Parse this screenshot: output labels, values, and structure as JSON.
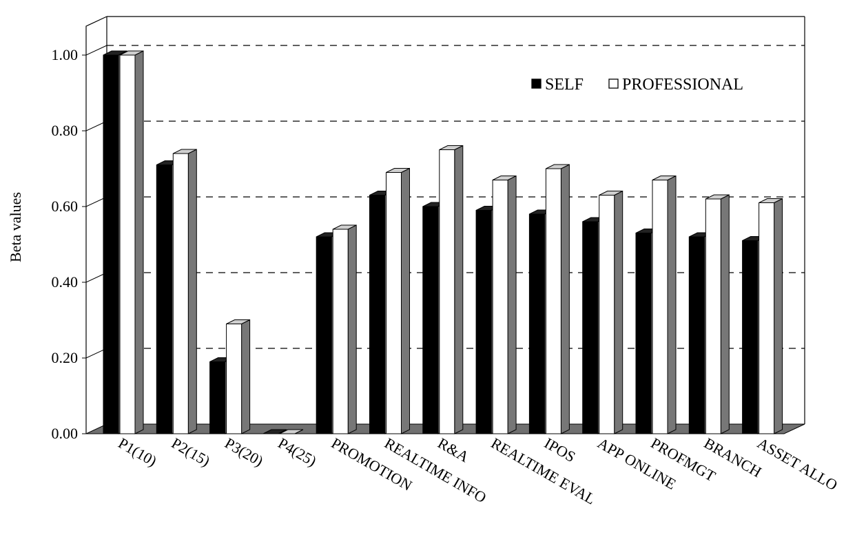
{
  "chart_data": {
    "type": "bar",
    "title": "",
    "xlabel": "",
    "ylabel": "Beta values",
    "ylim": [
      0,
      1.1
    ],
    "yticks": [
      "0.00",
      "0.20",
      "0.40",
      "0.60",
      "0.80",
      "1.00"
    ],
    "grid": "horizontal-dashed",
    "legend_position": "top-right",
    "categories": [
      "P1(10)",
      "P2(15)",
      "P3(20)",
      "P4(25)",
      "PROMOTION",
      "REALTIME INFO",
      "R&A",
      "REALTIME EVAL",
      "IPOS",
      "APP ONLINE",
      "PROFMGT",
      "BRANCH",
      "ASSET ALLO"
    ],
    "series": [
      {
        "name": "SELF",
        "color": "#000000",
        "values": [
          1.0,
          0.71,
          0.19,
          0.0,
          0.52,
          0.63,
          0.6,
          0.59,
          0.58,
          0.56,
          0.53,
          0.52,
          0.51
        ]
      },
      {
        "name": "PROFESSIONAL",
        "color": "#ffffff",
        "values": [
          1.0,
          0.74,
          0.29,
          0.0,
          0.54,
          0.69,
          0.75,
          0.67,
          0.7,
          0.63,
          0.67,
          0.62,
          0.61
        ]
      }
    ]
  }
}
